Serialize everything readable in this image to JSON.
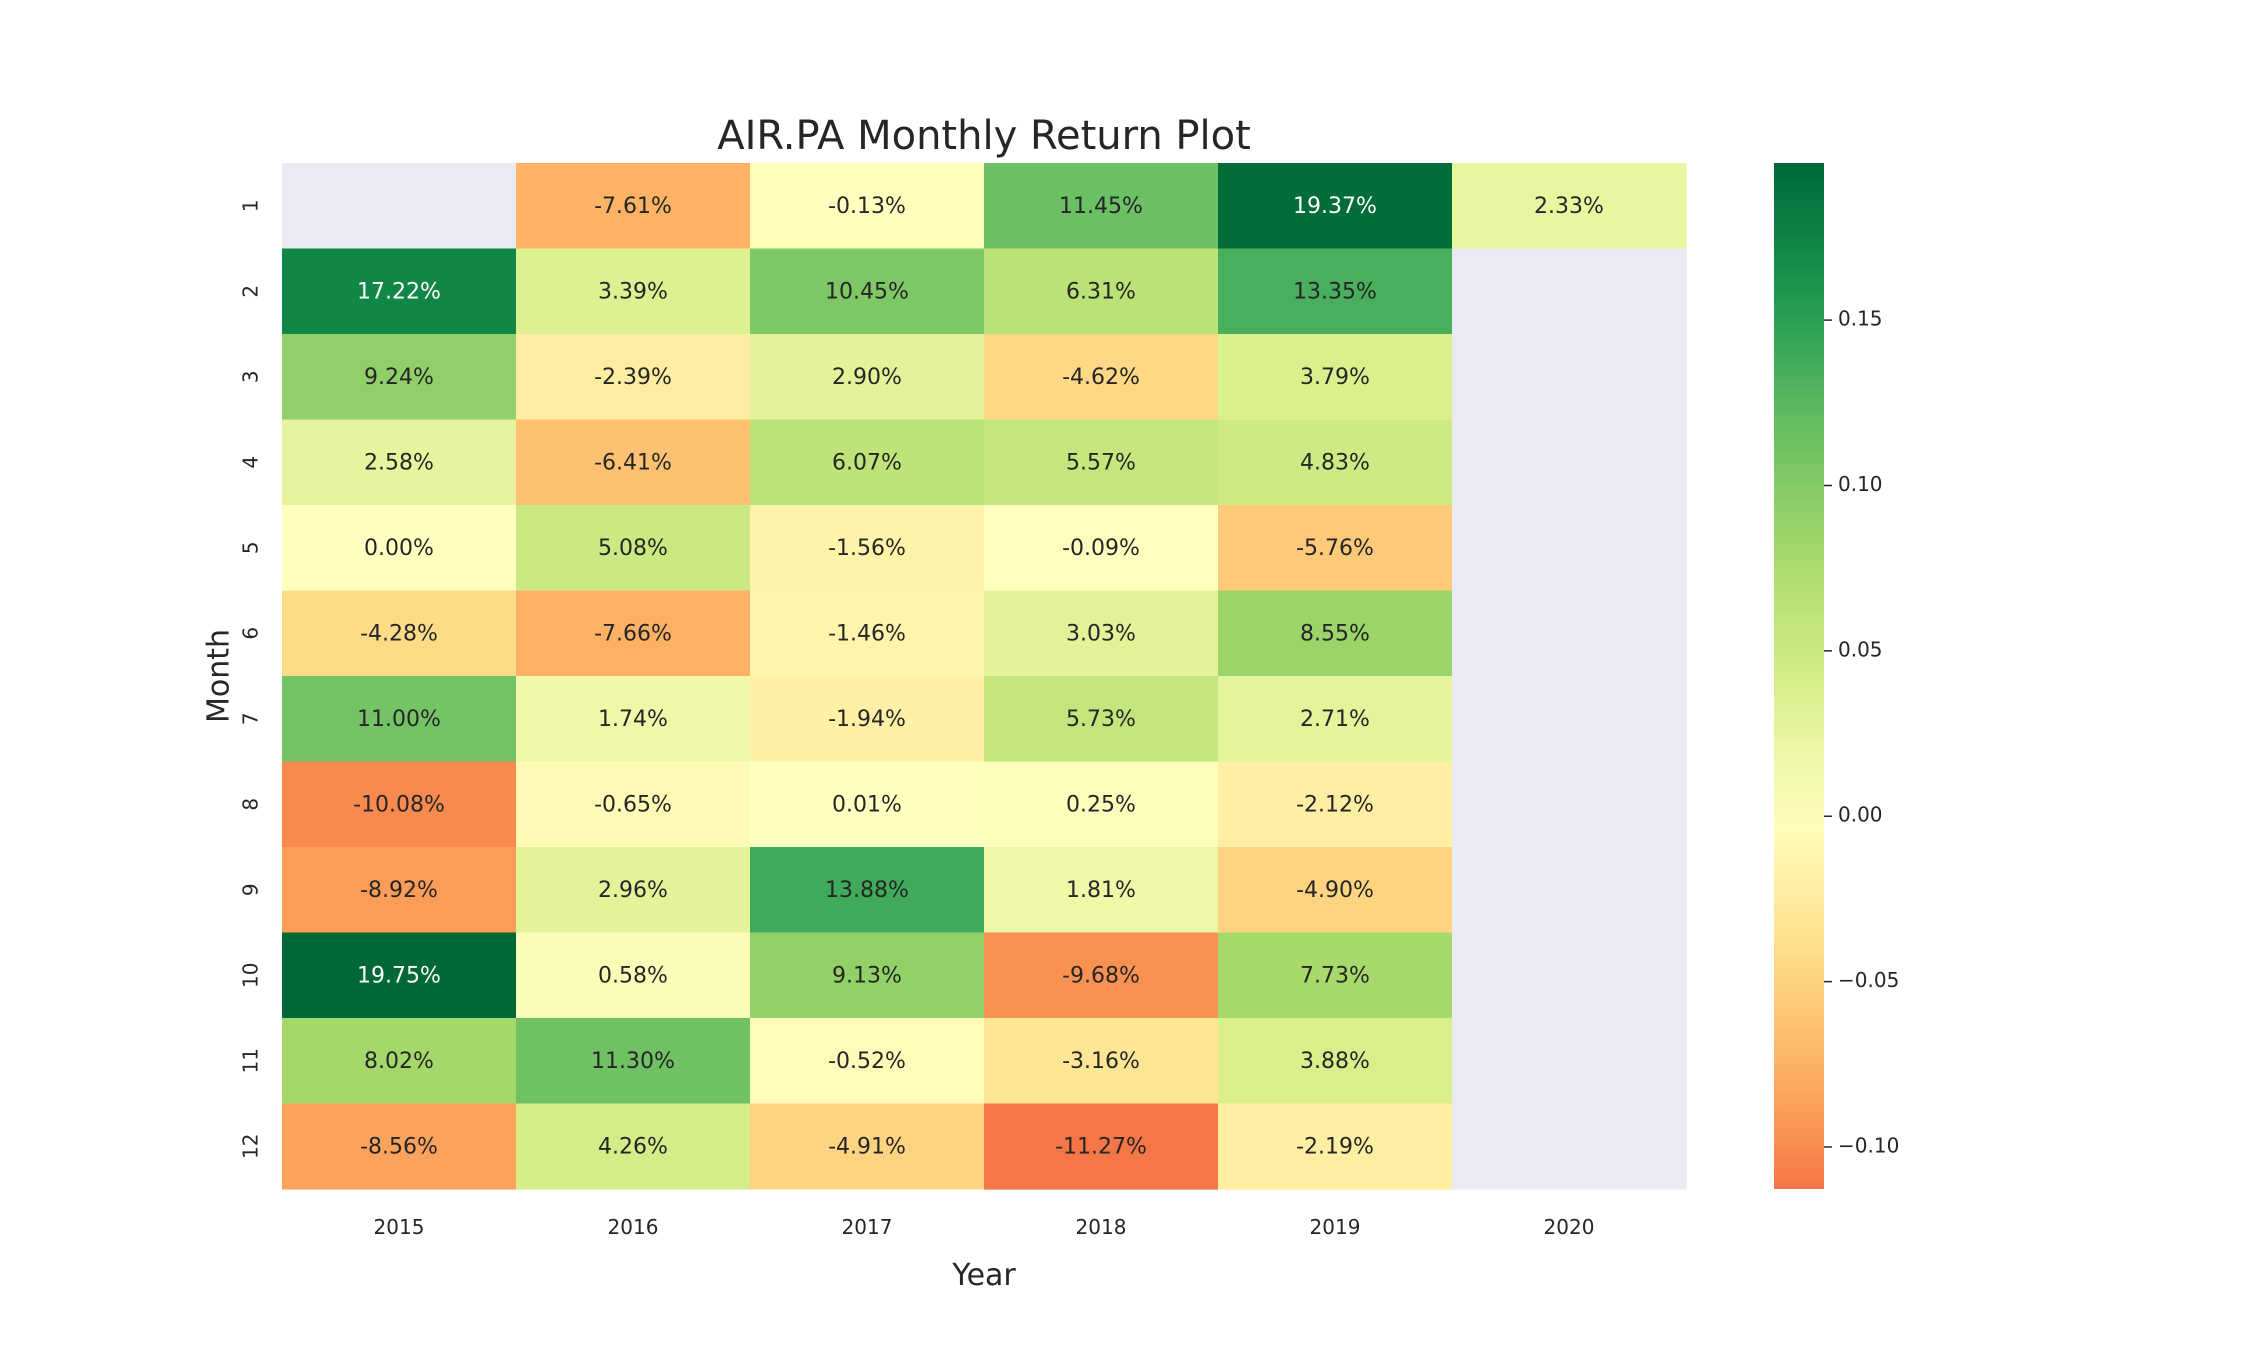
{
  "chart_data": {
    "type": "heatmap",
    "title": "AIR.PA Monthly Return Plot",
    "xlabel": "Year",
    "ylabel": "Month",
    "x_categories": [
      "2015",
      "2016",
      "2017",
      "2018",
      "2019",
      "2020"
    ],
    "y_categories": [
      "1",
      "2",
      "3",
      "4",
      "5",
      "6",
      "7",
      "8",
      "9",
      "10",
      "11",
      "12"
    ],
    "values": [
      [
        null,
        -0.0761,
        -0.0013,
        0.1145,
        0.1937,
        0.0233
      ],
      [
        0.1722,
        0.0339,
        0.1045,
        0.0631,
        0.1335,
        null
      ],
      [
        0.0924,
        -0.0239,
        0.029,
        -0.0462,
        0.0379,
        null
      ],
      [
        0.0258,
        -0.0641,
        0.0607,
        0.0557,
        0.0483,
        null
      ],
      [
        0.0,
        0.0508,
        -0.0156,
        -0.0009,
        -0.0576,
        null
      ],
      [
        -0.0428,
        -0.0766,
        -0.0146,
        0.0303,
        0.0855,
        null
      ],
      [
        0.11,
        0.0174,
        -0.0194,
        0.0573,
        0.0271,
        null
      ],
      [
        -0.1008,
        -0.0065,
        0.0001,
        0.0025,
        -0.0212,
        null
      ],
      [
        -0.0892,
        0.0296,
        0.1388,
        0.0181,
        -0.049,
        null
      ],
      [
        0.1975,
        0.0058,
        0.0913,
        -0.0968,
        0.0773,
        null
      ],
      [
        0.0802,
        0.113,
        -0.0052,
        -0.0316,
        0.0388,
        null
      ],
      [
        -0.0856,
        0.0426,
        -0.0491,
        -0.1127,
        -0.0219,
        null
      ]
    ],
    "annotations": [
      [
        null,
        "-7.61%",
        "-0.13%",
        "11.45%",
        "19.37%",
        "2.33%"
      ],
      [
        "17.22%",
        "3.39%",
        "10.45%",
        "6.31%",
        "13.35%",
        null
      ],
      [
        "9.24%",
        "-2.39%",
        "2.90%",
        "-4.62%",
        "3.79%",
        null
      ],
      [
        "2.58%",
        "-6.41%",
        "6.07%",
        "5.57%",
        "4.83%",
        null
      ],
      [
        "0.00%",
        "5.08%",
        "-1.56%",
        "-0.09%",
        "-5.76%",
        null
      ],
      [
        "-4.28%",
        "-7.66%",
        "-1.46%",
        "3.03%",
        "8.55%",
        null
      ],
      [
        "11.00%",
        "1.74%",
        "-1.94%",
        "5.73%",
        "2.71%",
        null
      ],
      [
        "-10.08%",
        "-0.65%",
        "0.01%",
        "0.25%",
        "-2.12%",
        null
      ],
      [
        "-8.92%",
        "2.96%",
        "13.88%",
        "1.81%",
        "-4.90%",
        null
      ],
      [
        "19.75%",
        "0.58%",
        "9.13%",
        "-9.68%",
        "7.73%",
        null
      ],
      [
        "8.02%",
        "11.30%",
        "-0.52%",
        "-3.16%",
        "3.88%",
        null
      ],
      [
        "-8.56%",
        "4.26%",
        "-4.91%",
        "-11.27%",
        "-2.19%",
        null
      ]
    ],
    "colormap": "RdYlGn",
    "center": 0,
    "vmin": -0.1127,
    "vmax": 0.1975,
    "missing_color": "#eaeaf2",
    "colorbar": {
      "ticks": [
        0.15,
        0.1,
        0.05,
        0.0,
        -0.05,
        -0.1
      ],
      "tick_labels": [
        "0.15",
        "0.10",
        "0.05",
        "0.00",
        "−0.05",
        "−0.10"
      ]
    }
  }
}
